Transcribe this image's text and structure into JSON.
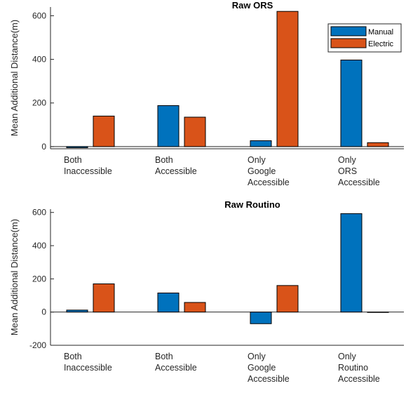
{
  "colors": {
    "manual": "#0072bd",
    "electric": "#d95319"
  },
  "chart_data": [
    {
      "type": "bar",
      "title": "Raw ORS",
      "ylabel": "Mean Additional Distance(m)",
      "ylim": [
        -10,
        640
      ],
      "yticks": [
        0,
        200,
        400,
        600
      ],
      "categories": [
        [
          "Both",
          "Inaccessible"
        ],
        [
          "Both",
          "Accessible"
        ],
        [
          "Only",
          "Google",
          "Accessible"
        ],
        [
          "Only",
          " ORS",
          "Accessible"
        ]
      ],
      "series": [
        {
          "name": "Manual",
          "color_key": "manual",
          "values": [
            -5,
            188,
            27,
            397
          ]
        },
        {
          "name": "Electric",
          "color_key": "electric",
          "values": [
            140,
            135,
            620,
            18
          ]
        }
      ],
      "legend": {
        "position": "top-right"
      }
    },
    {
      "type": "bar",
      "title": "Raw Routino",
      "ylabel": "Mean Additional Distance(m)",
      "ylim": [
        -200,
        620
      ],
      "yticks": [
        -200,
        0,
        200,
        400,
        600
      ],
      "categories": [
        [
          "Both",
          "Inaccessible"
        ],
        [
          "Both",
          "Accessible"
        ],
        [
          "Only",
          "Google",
          "Accessible"
        ],
        [
          "Only",
          " Routino",
          "Accessible"
        ]
      ],
      "series": [
        {
          "name": "Manual",
          "color_key": "manual",
          "values": [
            12,
            115,
            -70,
            593
          ]
        },
        {
          "name": "Electric",
          "color_key": "electric",
          "values": [
            170,
            58,
            160,
            0
          ]
        }
      ]
    }
  ]
}
